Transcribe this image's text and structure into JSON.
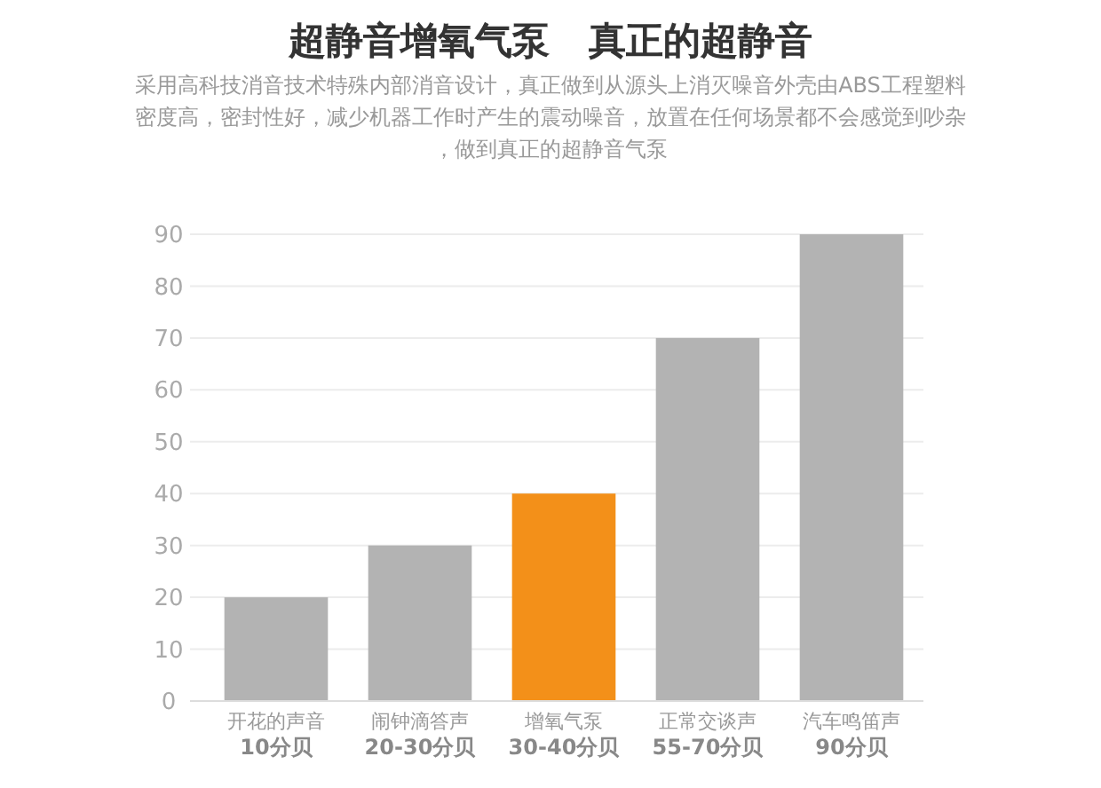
{
  "chart_data": {
    "type": "bar",
    "title": "超静音增氧气泵   真正的超静音",
    "subtitle": "采用高科技消音技术特殊内部消音设计，真正做到从源头上消灭噪音外壳由ABS工程塑料密度高，密封性好，减少机器工作时产生的震动噪音，放置在任何场景都不会感觉到吵杂，做到真正的超静音气泵",
    "categories": [
      "开花的声音\n10分贝",
      "闹钟滴答声\n20-30分贝",
      "增氧气泵\n30-40分贝",
      "正常交谈声\n55-70分贝",
      "汽车鸣笛声\n90分贝"
    ],
    "values": [
      20,
      30,
      40,
      70,
      90
    ],
    "colors": [
      "#b3b3b3",
      "#b3b3b3",
      "#f39019",
      "#b3b3b3",
      "#b3b3b3"
    ],
    "ylim": [
      0,
      90
    ],
    "yticks": [
      0,
      10,
      20,
      30,
      40,
      50,
      60,
      70,
      80,
      90
    ],
    "grid": "y"
  }
}
